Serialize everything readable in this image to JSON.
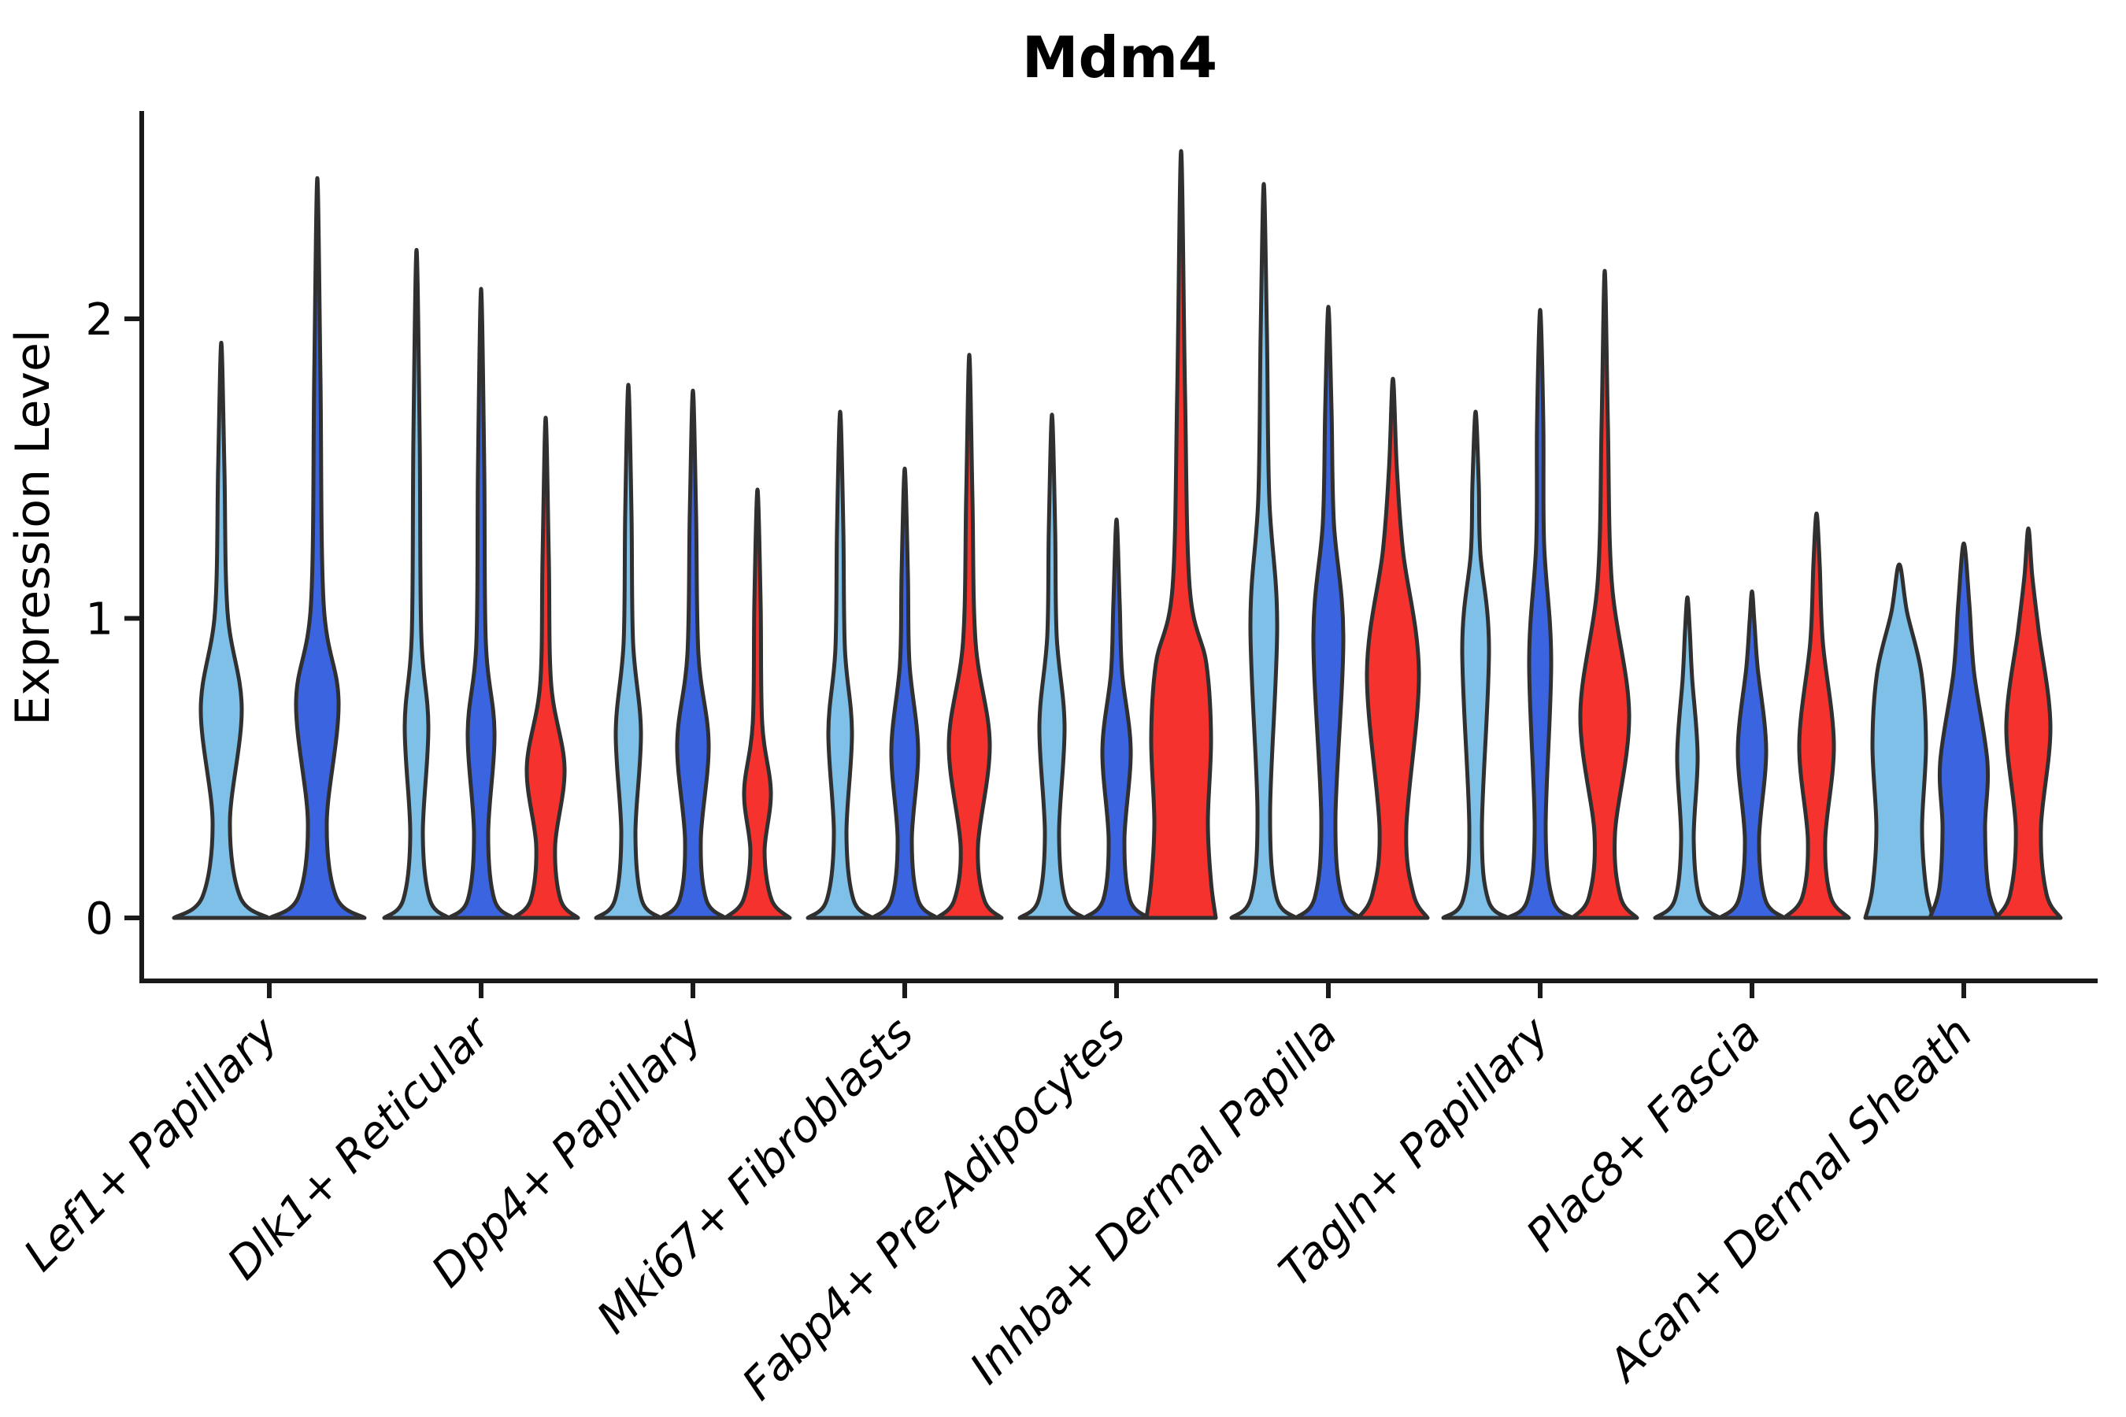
{
  "chart_data": {
    "type": "violin",
    "title": "Mdm4",
    "ylabel": "Expression Level",
    "xlabel": "",
    "yticks": [
      0,
      1,
      2
    ],
    "ylim": [
      -0.21,
      2.69
    ],
    "grid": false,
    "legend": "none",
    "palette": {
      "light_blue": "#7EC0E8",
      "dark_blue": "#3B64E0",
      "red": "#F5322E"
    },
    "categories": [
      {
        "label": "Lef1+ Papillary",
        "x": 342
      },
      {
        "label": "Dlk1+ Reticular",
        "x": 611
      },
      {
        "label": "Dpp4+ Papillary",
        "x": 880
      },
      {
        "label": "Mki67+ Fibroblasts",
        "x": 1149
      },
      {
        "label": "Fabp4+ Pre-Adipocytes",
        "x": 1418
      },
      {
        "label": "Inhba+ Dermal Papilla",
        "x": 1687
      },
      {
        "label": "Tagln+ Papillary",
        "x": 1956
      },
      {
        "label": "Plac8+ Fascia",
        "x": 2225
      },
      {
        "label": "Acan+ Dermal Sheath",
        "x": 2494
      }
    ],
    "violins": [
      {
        "category": "Lef1+ Papillary",
        "series": "light_blue",
        "cx": 281,
        "max": 1.92,
        "profile": [
          [
            60,
            0
          ],
          [
            24,
            0.07
          ],
          [
            11,
            0.32
          ],
          [
            26,
            0.7
          ],
          [
            8,
            1.02
          ],
          [
            4,
            1.5
          ],
          [
            0,
            1.92
          ]
        ]
      },
      {
        "category": "Lef1+ Papillary",
        "series": "dark_blue",
        "cx": 403,
        "max": 2.47,
        "profile": [
          [
            60,
            0
          ],
          [
            24,
            0.07
          ],
          [
            12,
            0.32
          ],
          [
            27,
            0.72
          ],
          [
            8,
            1.05
          ],
          [
            4,
            1.8
          ],
          [
            0,
            2.47
          ]
        ]
      },
      {
        "category": "Dlk1+ Reticular",
        "series": "light_blue",
        "cx": 529,
        "max": 2.23,
        "profile": [
          [
            41,
            0
          ],
          [
            17,
            0.06
          ],
          [
            8,
            0.28
          ],
          [
            15,
            0.64
          ],
          [
            6,
            0.95
          ],
          [
            4,
            1.6
          ],
          [
            0,
            2.23
          ]
        ]
      },
      {
        "category": "Dlk1+ Reticular",
        "series": "dark_blue",
        "cx": 611,
        "max": 2.1,
        "profile": [
          [
            41,
            0
          ],
          [
            17,
            0.06
          ],
          [
            9,
            0.28
          ],
          [
            17,
            0.62
          ],
          [
            6,
            0.92
          ],
          [
            4,
            1.5
          ],
          [
            0,
            2.1
          ]
        ]
      },
      {
        "category": "Dlk1+ Reticular",
        "series": "red",
        "cx": 693,
        "max": 1.67,
        "profile": [
          [
            41,
            0
          ],
          [
            19,
            0.06
          ],
          [
            12,
            0.24
          ],
          [
            24,
            0.5
          ],
          [
            7,
            0.78
          ],
          [
            4,
            1.2
          ],
          [
            0,
            1.67
          ]
        ]
      },
      {
        "category": "Dpp4+ Papillary",
        "series": "light_blue",
        "cx": 798,
        "max": 1.78,
        "profile": [
          [
            41,
            0
          ],
          [
            17,
            0.06
          ],
          [
            9,
            0.28
          ],
          [
            16,
            0.62
          ],
          [
            6,
            0.92
          ],
          [
            4,
            1.35
          ],
          [
            0,
            1.78
          ]
        ]
      },
      {
        "category": "Dpp4+ Papillary",
        "series": "dark_blue",
        "cx": 880,
        "max": 1.76,
        "profile": [
          [
            41,
            0
          ],
          [
            17,
            0.06
          ],
          [
            10,
            0.26
          ],
          [
            20,
            0.58
          ],
          [
            7,
            0.88
          ],
          [
            4,
            1.35
          ],
          [
            0,
            1.76
          ]
        ]
      },
      {
        "category": "Dpp4+ Papillary",
        "series": "red",
        "cx": 962,
        "max": 1.43,
        "profile": [
          [
            41,
            0
          ],
          [
            18,
            0.06
          ],
          [
            9,
            0.22
          ],
          [
            17,
            0.42
          ],
          [
            6,
            0.65
          ],
          [
            4,
            1.05
          ],
          [
            0,
            1.43
          ]
        ]
      },
      {
        "category": "Mki67+ Fibroblasts",
        "series": "light_blue",
        "cx": 1067,
        "max": 1.69,
        "profile": [
          [
            41,
            0
          ],
          [
            17,
            0.06
          ],
          [
            8,
            0.28
          ],
          [
            15,
            0.62
          ],
          [
            6,
            0.9
          ],
          [
            4,
            1.3
          ],
          [
            0,
            1.69
          ]
        ]
      },
      {
        "category": "Mki67+ Fibroblasts",
        "series": "dark_blue",
        "cx": 1149,
        "max": 1.5,
        "profile": [
          [
            41,
            0
          ],
          [
            17,
            0.06
          ],
          [
            9,
            0.26
          ],
          [
            17,
            0.56
          ],
          [
            6,
            0.85
          ],
          [
            4,
            1.15
          ],
          [
            0,
            1.5
          ]
        ]
      },
      {
        "category": "Mki67+ Fibroblasts",
        "series": "red",
        "cx": 1231,
        "max": 1.88,
        "profile": [
          [
            41,
            0
          ],
          [
            19,
            0.06
          ],
          [
            11,
            0.24
          ],
          [
            26,
            0.58
          ],
          [
            8,
            0.92
          ],
          [
            4,
            1.4
          ],
          [
            0,
            1.88
          ]
        ]
      },
      {
        "category": "Fabp4+ Pre-Adipocytes",
        "series": "light_blue",
        "cx": 1336,
        "max": 1.68,
        "profile": [
          [
            41,
            0
          ],
          [
            17,
            0.06
          ],
          [
            9,
            0.28
          ],
          [
            16,
            0.64
          ],
          [
            6,
            0.94
          ],
          [
            4,
            1.3
          ],
          [
            0,
            1.68
          ]
        ]
      },
      {
        "category": "Fabp4+ Pre-Adipocytes",
        "series": "dark_blue",
        "cx": 1418,
        "max": 1.33,
        "profile": [
          [
            41,
            0
          ],
          [
            17,
            0.06
          ],
          [
            10,
            0.26
          ],
          [
            18,
            0.56
          ],
          [
            7,
            0.82
          ],
          [
            4,
            1.05
          ],
          [
            0,
            1.33
          ]
        ]
      },
      {
        "category": "Fabp4+ Pre-Adipocytes",
        "series": "red",
        "cx": 1500,
        "max": 2.56,
        "profile": [
          [
            44,
            0
          ],
          [
            38,
            0.12
          ],
          [
            34,
            0.32
          ],
          [
            38,
            0.6
          ],
          [
            32,
            0.85
          ],
          [
            11,
            1.1
          ],
          [
            5,
            1.75
          ],
          [
            0,
            2.56
          ]
        ]
      },
      {
        "category": "Inhba+ Dermal Papilla",
        "series": "light_blue",
        "cx": 1605,
        "max": 2.45,
        "profile": [
          [
            41,
            0
          ],
          [
            16,
            0.07
          ],
          [
            8,
            0.35
          ],
          [
            17,
            0.98
          ],
          [
            7,
            1.4
          ],
          [
            4,
            1.95
          ],
          [
            0,
            2.45
          ]
        ]
      },
      {
        "category": "Inhba+ Dermal Papilla",
        "series": "dark_blue",
        "cx": 1687,
        "max": 2.04,
        "profile": [
          [
            41,
            0
          ],
          [
            17,
            0.07
          ],
          [
            9,
            0.33
          ],
          [
            19,
            0.94
          ],
          [
            7,
            1.32
          ],
          [
            4,
            1.7
          ],
          [
            0,
            2.04
          ]
        ]
      },
      {
        "category": "Inhba+ Dermal Papilla",
        "series": "red",
        "cx": 1769,
        "max": 1.8,
        "profile": [
          [
            44,
            0
          ],
          [
            26,
            0.08
          ],
          [
            17,
            0.3
          ],
          [
            33,
            0.82
          ],
          [
            13,
            1.22
          ],
          [
            5,
            1.5
          ],
          [
            0,
            1.8
          ]
        ]
      },
      {
        "category": "Tagln+ Papillary",
        "series": "light_blue",
        "cx": 1874,
        "max": 1.69,
        "profile": [
          [
            41,
            0
          ],
          [
            16,
            0.06
          ],
          [
            8,
            0.3
          ],
          [
            17,
            0.9
          ],
          [
            6,
            1.22
          ],
          [
            4,
            1.45
          ],
          [
            0,
            1.69
          ]
        ]
      },
      {
        "category": "Tagln+ Papillary",
        "series": "dark_blue",
        "cx": 1956,
        "max": 2.03,
        "profile": [
          [
            41,
            0
          ],
          [
            16,
            0.06
          ],
          [
            7,
            0.3
          ],
          [
            14,
            0.86
          ],
          [
            5,
            1.25
          ],
          [
            4,
            1.65
          ],
          [
            0,
            2.03
          ]
        ]
      },
      {
        "category": "Tagln+ Papillary",
        "series": "red",
        "cx": 2038,
        "max": 2.16,
        "profile": [
          [
            41,
            0
          ],
          [
            20,
            0.07
          ],
          [
            13,
            0.28
          ],
          [
            31,
            0.68
          ],
          [
            9,
            1.12
          ],
          [
            4,
            1.65
          ],
          [
            0,
            2.16
          ]
        ]
      },
      {
        "category": "Plac8+ Fascia",
        "series": "light_blue",
        "cx": 2143,
        "max": 1.07,
        "profile": [
          [
            41,
            0
          ],
          [
            16,
            0.06
          ],
          [
            8,
            0.26
          ],
          [
            13,
            0.54
          ],
          [
            6,
            0.8
          ],
          [
            3,
            0.96
          ],
          [
            0,
            1.07
          ]
        ]
      },
      {
        "category": "Plac8+ Fascia",
        "series": "dark_blue",
        "cx": 2225,
        "max": 1.09,
        "profile": [
          [
            41,
            0
          ],
          [
            17,
            0.06
          ],
          [
            9,
            0.26
          ],
          [
            18,
            0.56
          ],
          [
            7,
            0.84
          ],
          [
            3,
            0.99
          ],
          [
            0,
            1.09
          ]
        ]
      },
      {
        "category": "Plac8+ Fascia",
        "series": "red",
        "cx": 2307,
        "max": 1.35,
        "profile": [
          [
            41,
            0
          ],
          [
            18,
            0.07
          ],
          [
            11,
            0.26
          ],
          [
            22,
            0.58
          ],
          [
            8,
            0.92
          ],
          [
            4,
            1.18
          ],
          [
            0,
            1.35
          ]
        ]
      },
      {
        "category": "Acan+ Dermal Sheath",
        "series": "light_blue",
        "cx": 2412,
        "max": 1.18,
        "profile": [
          [
            43,
            0
          ],
          [
            34,
            0.1
          ],
          [
            29,
            0.3
          ],
          [
            34,
            0.58
          ],
          [
            28,
            0.82
          ],
          [
            10,
            1.02
          ],
          [
            0,
            1.18
          ]
        ]
      },
      {
        "category": "Acan+ Dermal Sheath",
        "series": "dark_blue",
        "cx": 2494,
        "max": 1.25,
        "profile": [
          [
            43,
            0
          ],
          [
            31,
            0.1
          ],
          [
            27,
            0.3
          ],
          [
            30,
            0.52
          ],
          [
            13,
            0.82
          ],
          [
            7,
            1.05
          ],
          [
            0,
            1.25
          ]
        ]
      },
      {
        "category": "Acan+ Dermal Sheath",
        "series": "red",
        "cx": 2576,
        "max": 1.3,
        "profile": [
          [
            41,
            0
          ],
          [
            23,
            0.08
          ],
          [
            16,
            0.3
          ],
          [
            28,
            0.64
          ],
          [
            13,
            0.96
          ],
          [
            5,
            1.14
          ],
          [
            0,
            1.3
          ]
        ]
      }
    ]
  }
}
